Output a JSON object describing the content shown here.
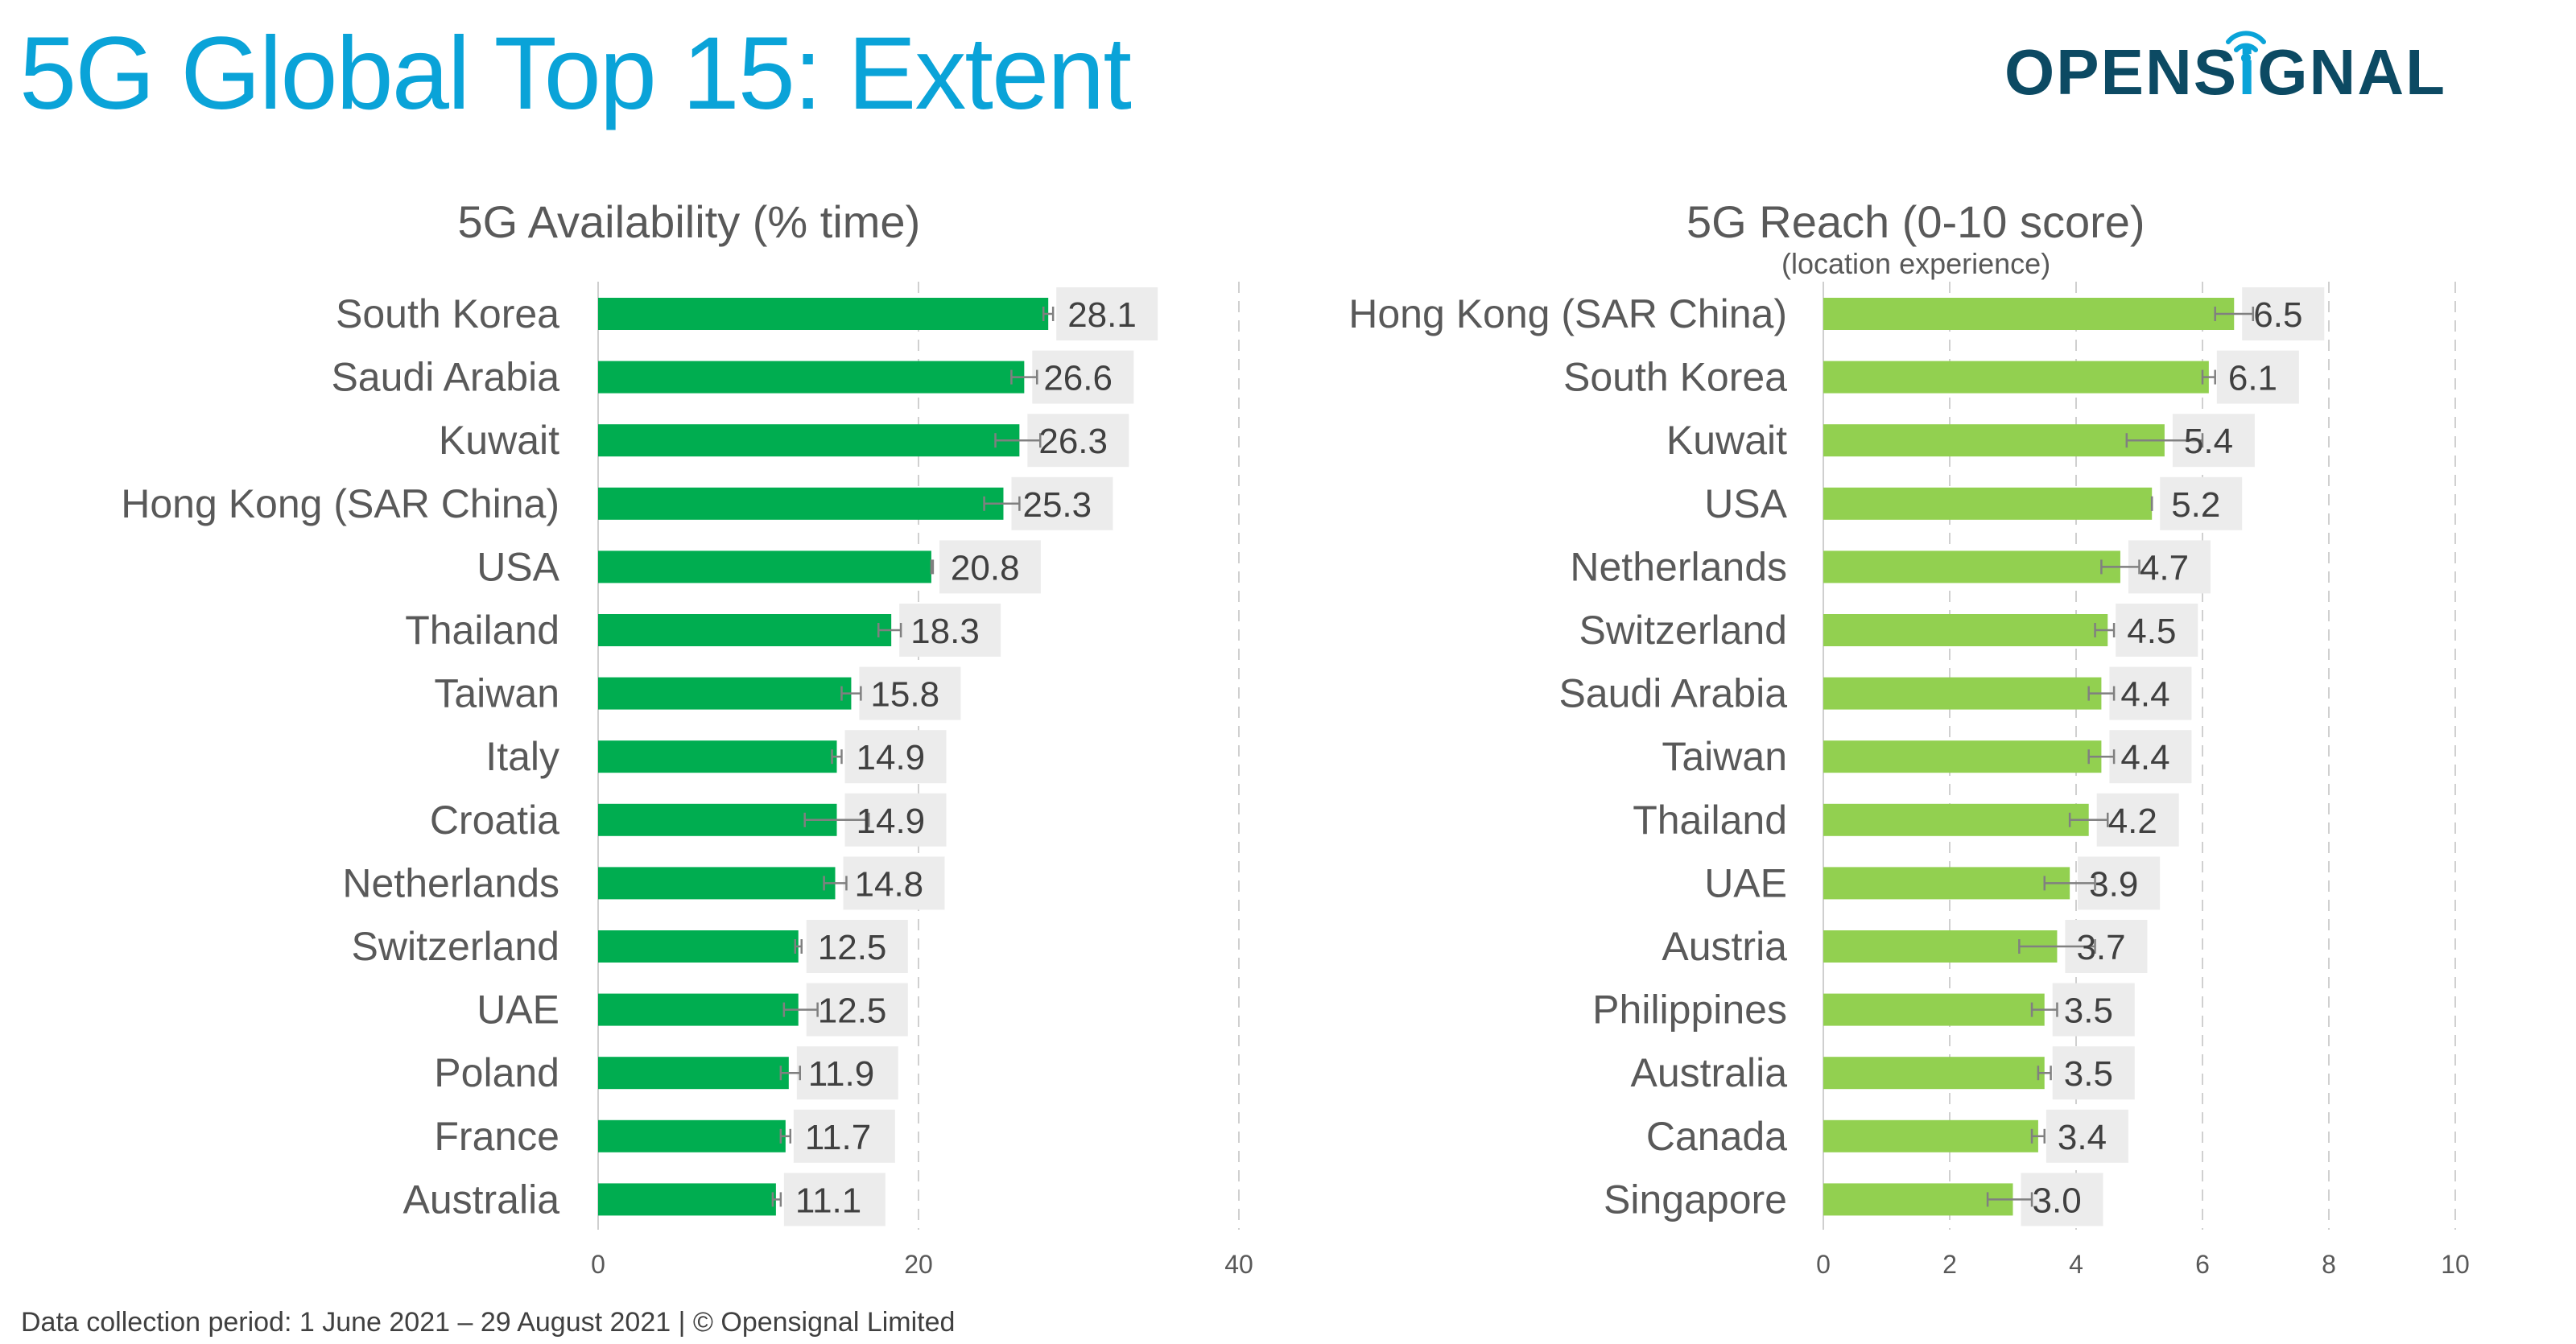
{
  "page": {
    "title": "5G Global Top 15: Extent",
    "logo": {
      "text_before": "OPENS",
      "text_accent": "i",
      "text_after": "GNAL",
      "icon": "wifi-signal-icon"
    },
    "footer": "Data collection period: 1 June 2021 – 29 August 2021  |  © Opensignal Limited",
    "colors": {
      "title": "#0aa3d8",
      "logo_dark": "#0c4a63",
      "left_bar": "#00ad50",
      "right_bar": "#92d050",
      "label_box": "#ececec",
      "error_bar": "#808080",
      "grid": "#d0d0d0"
    }
  },
  "chart_data": [
    {
      "type": "bar",
      "orientation": "horizontal",
      "title": "5G Availability (% time)",
      "subtitle": "",
      "xlabel": "",
      "ylabel": "",
      "xlim": [
        0,
        40
      ],
      "ticks": [
        0,
        20,
        40
      ],
      "grid": true,
      "categories": [
        "South Korea",
        "Saudi Arabia",
        "Kuwait",
        "Hong Kong (SAR China)",
        "USA",
        "Thailand",
        "Taiwan",
        "Italy",
        "Croatia",
        "Netherlands",
        "Switzerland",
        "UAE",
        "Poland",
        "France",
        "Australia"
      ],
      "values": [
        28.1,
        26.6,
        26.3,
        25.3,
        20.8,
        18.3,
        15.8,
        14.9,
        14.9,
        14.8,
        12.5,
        12.5,
        11.9,
        11.7,
        11.1
      ],
      "value_labels": [
        "28.1",
        "26.6",
        "26.3",
        "25.3",
        "20.8",
        "18.3",
        "15.8",
        "14.9",
        "14.9",
        "14.8",
        "12.5",
        "12.5",
        "11.9",
        "11.7",
        "11.1"
      ],
      "error_low": [
        27.8,
        25.8,
        24.8,
        24.1,
        20.8,
        17.5,
        15.2,
        14.6,
        12.9,
        14.1,
        12.3,
        11.6,
        11.4,
        11.4,
        10.9
      ],
      "error_high": [
        28.4,
        27.4,
        27.6,
        26.3,
        20.9,
        18.9,
        16.4,
        15.2,
        16.9,
        15.5,
        12.7,
        13.7,
        12.6,
        12.0,
        11.4
      ]
    },
    {
      "type": "bar",
      "orientation": "horizontal",
      "title": "5G Reach (0-10 score)",
      "subtitle": "(location experience)",
      "xlabel": "",
      "ylabel": "",
      "xlim": [
        0,
        10
      ],
      "ticks": [
        0,
        2,
        4,
        6,
        8,
        10
      ],
      "grid": true,
      "categories": [
        "Hong Kong (SAR China)",
        "South Korea",
        "Kuwait",
        "USA",
        "Netherlands",
        "Switzerland",
        "Saudi Arabia",
        "Taiwan",
        "Thailand",
        "UAE",
        "Austria",
        "Philippines",
        "Australia",
        "Canada",
        "Singapore"
      ],
      "values": [
        6.5,
        6.1,
        5.4,
        5.2,
        4.7,
        4.5,
        4.4,
        4.4,
        4.2,
        3.9,
        3.7,
        3.5,
        3.5,
        3.4,
        3.0
      ],
      "value_labels": [
        "6.5",
        "6.1",
        "5.4",
        "5.2",
        "4.7",
        "4.5",
        "4.4",
        "4.4",
        "4.2",
        "3.9",
        "3.7",
        "3.5",
        "3.5",
        "3.4",
        "3.0"
      ],
      "error_low": [
        6.2,
        6.0,
        4.8,
        5.2,
        4.4,
        4.3,
        4.2,
        4.2,
        3.9,
        3.5,
        3.1,
        3.3,
        3.4,
        3.3,
        2.6
      ],
      "error_high": [
        6.8,
        6.2,
        6.0,
        5.2,
        5.0,
        4.6,
        4.6,
        4.6,
        4.5,
        4.3,
        4.3,
        3.7,
        3.6,
        3.5,
        3.3
      ]
    }
  ]
}
